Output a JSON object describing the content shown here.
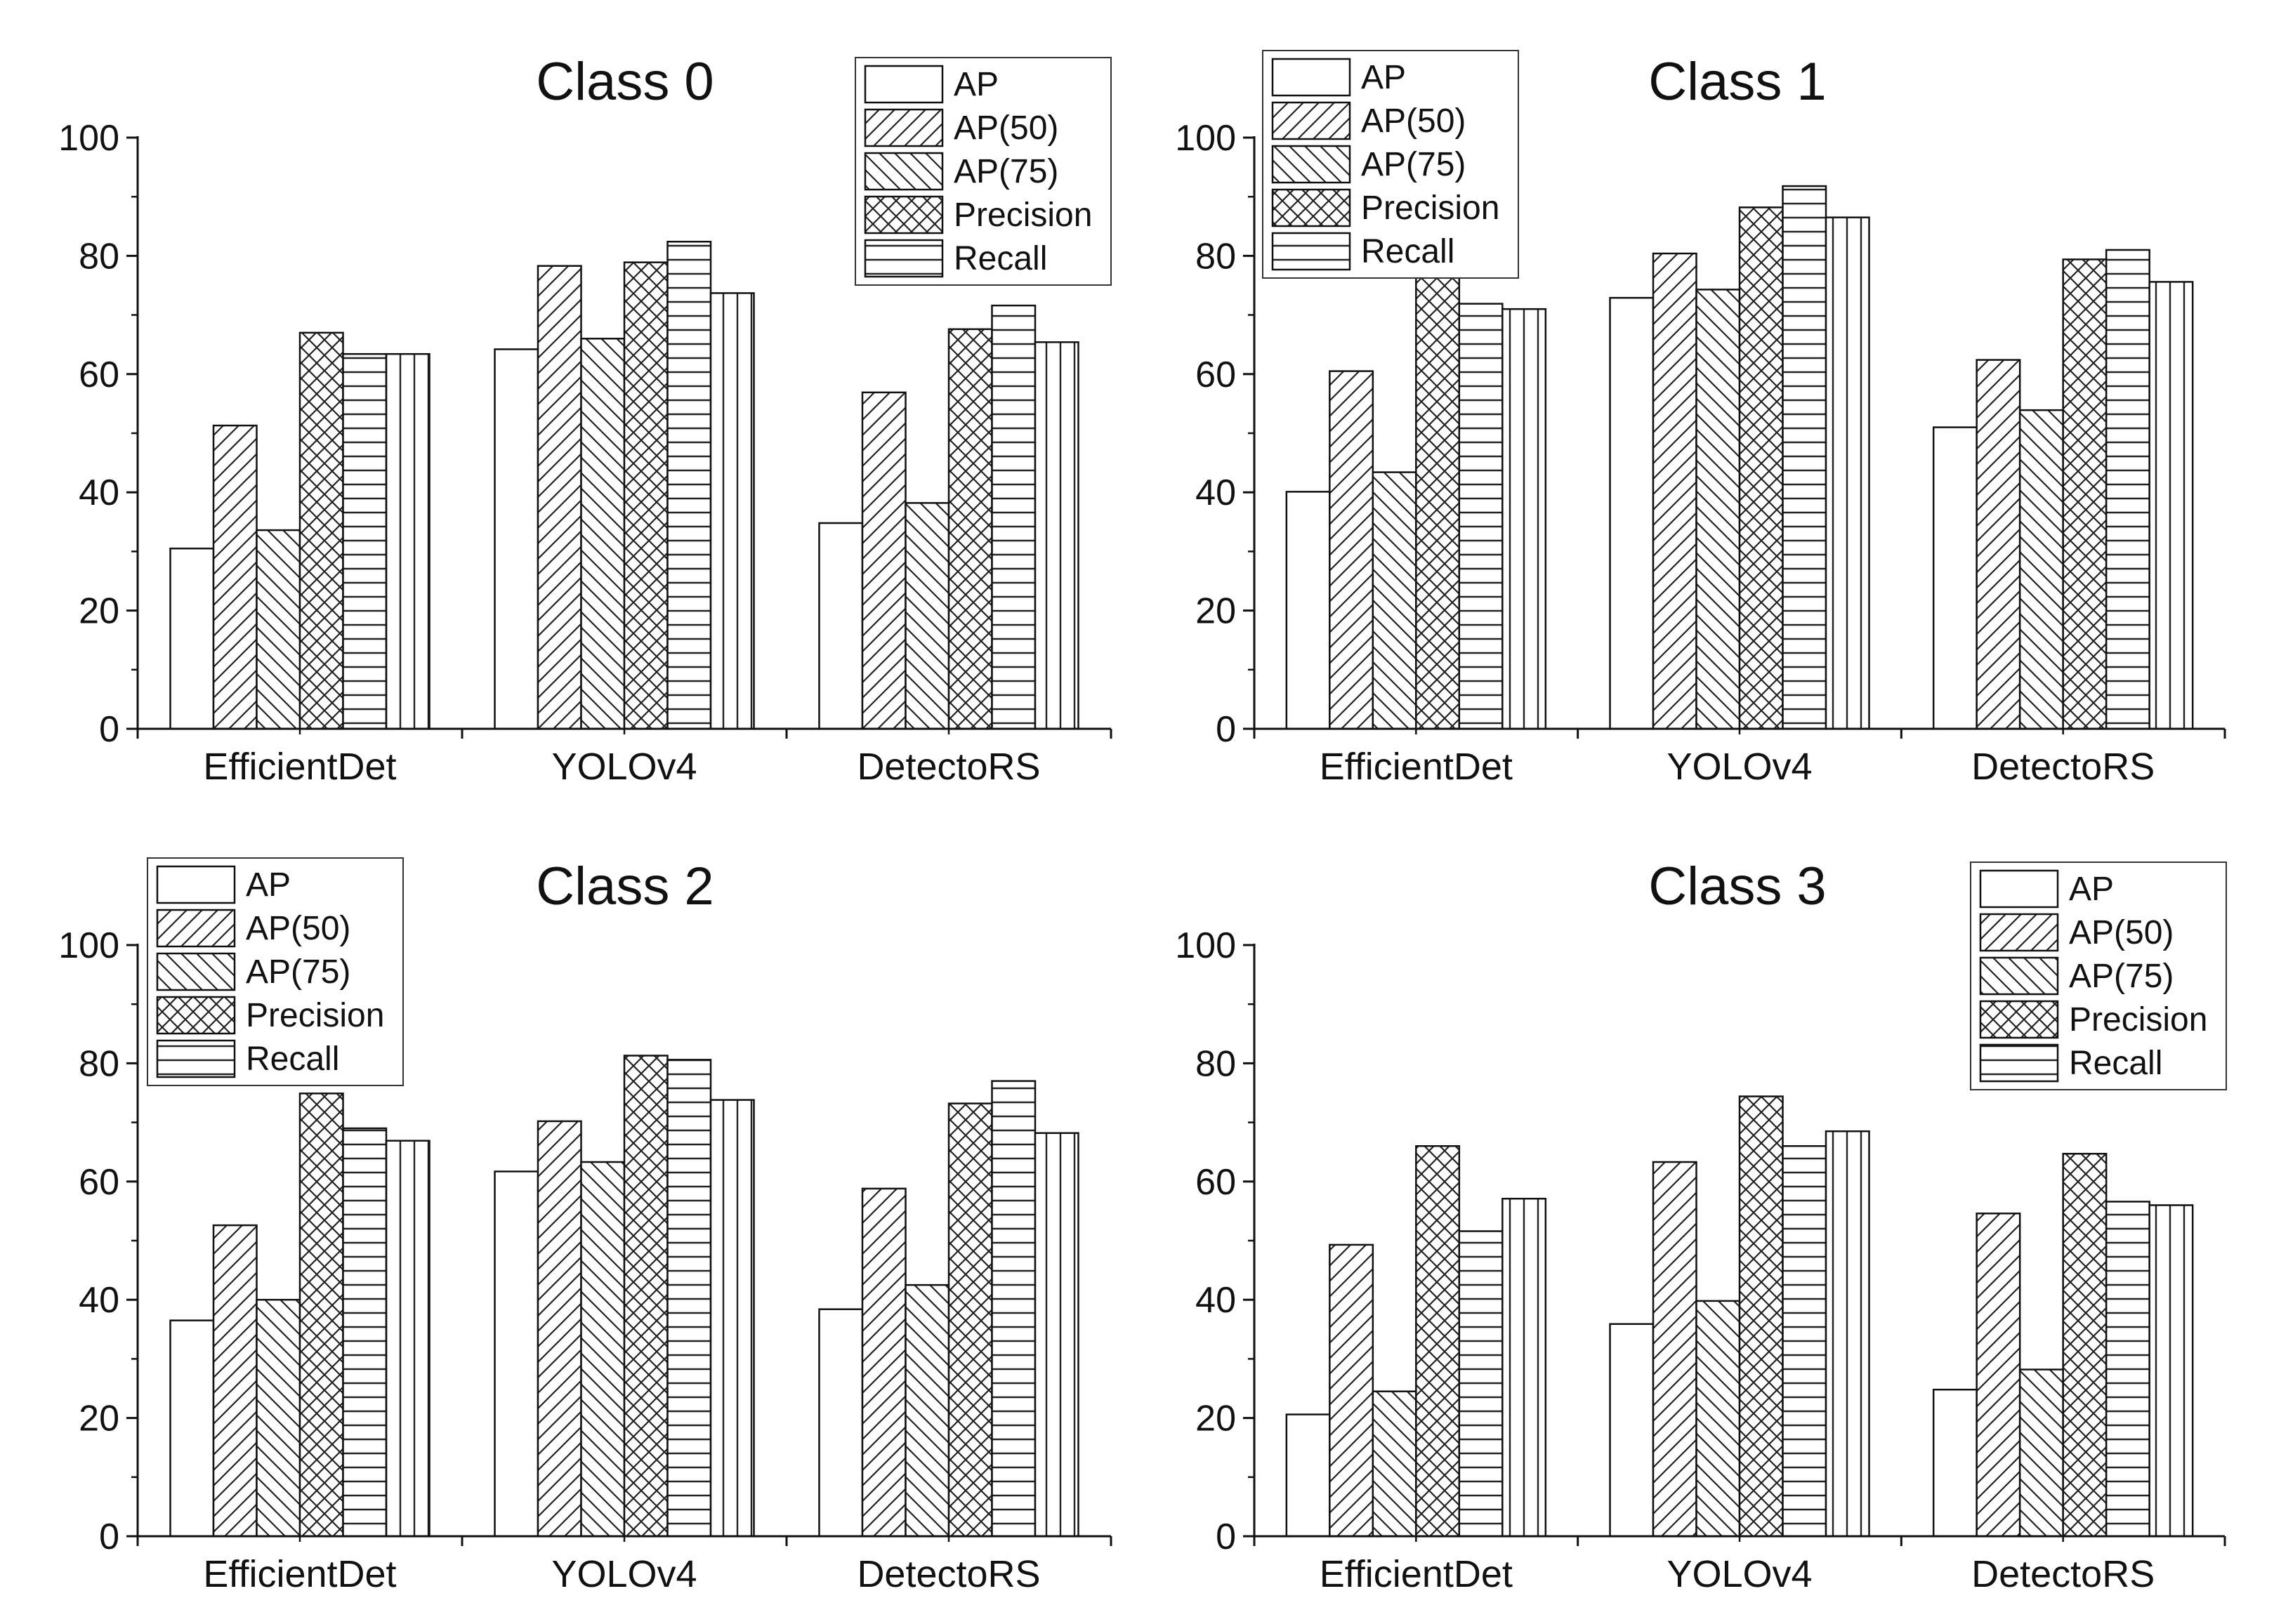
{
  "chart_data": [
    {
      "type": "bar",
      "title": "Class 0",
      "categories": [
        "EfficientDet",
        "YOLOv4",
        "DetectoRS"
      ],
      "ylim": [
        0,
        100
      ],
      "yticks": [
        "0",
        "20",
        "40",
        "60",
        "80",
        "100"
      ],
      "legend_position": "top-right",
      "series": [
        {
          "name": "AP",
          "pattern": "blank",
          "values": [
            30.5,
            64.2,
            34.8
          ]
        },
        {
          "name": "AP(50)",
          "pattern": "diag-right",
          "values": [
            51.3,
            78.3,
            56.9
          ]
        },
        {
          "name": "AP(75)",
          "pattern": "diag-left",
          "values": [
            33.6,
            66.0,
            38.2
          ]
        },
        {
          "name": "Precision",
          "pattern": "crosshatch",
          "values": [
            67.0,
            78.9,
            67.6
          ]
        },
        {
          "name": "Recall",
          "pattern": "horizontal",
          "values": [
            63.4,
            82.4,
            71.6
          ]
        },
        {
          "name": "",
          "pattern": "vertical",
          "values": [
            63.4,
            73.7,
            65.4
          ]
        }
      ]
    },
    {
      "type": "bar",
      "title": "Class 1",
      "categories": [
        "EfficientDet",
        "YOLOv4",
        "DetectoRS"
      ],
      "ylim": [
        0,
        100
      ],
      "yticks": [
        "0",
        "20",
        "40",
        "60",
        "80",
        "100"
      ],
      "legend_position": "top-left",
      "series": [
        {
          "name": "AP",
          "pattern": "blank",
          "values": [
            40.1,
            72.9,
            51.0
          ]
        },
        {
          "name": "AP(50)",
          "pattern": "diag-right",
          "values": [
            60.5,
            80.4,
            62.4
          ]
        },
        {
          "name": "AP(75)",
          "pattern": "diag-left",
          "values": [
            43.4,
            74.3,
            53.9
          ]
        },
        {
          "name": "Precision",
          "pattern": "crosshatch",
          "values": [
            76.8,
            88.2,
            79.4
          ]
        },
        {
          "name": "Recall",
          "pattern": "horizontal",
          "values": [
            71.9,
            91.8,
            81.0
          ]
        },
        {
          "name": "",
          "pattern": "vertical",
          "values": [
            71.0,
            86.5,
            75.6
          ]
        }
      ]
    },
    {
      "type": "bar",
      "title": "Class 2",
      "categories": [
        "EfficientDet",
        "YOLOv4",
        "DetectoRS"
      ],
      "ylim": [
        0,
        100
      ],
      "yticks": [
        "0",
        "20",
        "40",
        "60",
        "80",
        "100"
      ],
      "legend_position": "top-left",
      "series": [
        {
          "name": "AP",
          "pattern": "blank",
          "values": [
            36.5,
            61.7,
            38.4
          ]
        },
        {
          "name": "AP(50)",
          "pattern": "diag-right",
          "values": [
            52.6,
            70.2,
            58.8
          ]
        },
        {
          "name": "AP(75)",
          "pattern": "diag-left",
          "values": [
            40.0,
            63.3,
            42.5
          ]
        },
        {
          "name": "Precision",
          "pattern": "crosshatch",
          "values": [
            74.9,
            81.3,
            73.2
          ]
        },
        {
          "name": "Recall",
          "pattern": "horizontal",
          "values": [
            69.0,
            80.6,
            77.0
          ]
        },
        {
          "name": "",
          "pattern": "vertical",
          "values": [
            66.9,
            73.8,
            68.2
          ]
        }
      ]
    },
    {
      "type": "bar",
      "title": "Class 3",
      "categories": [
        "EfficientDet",
        "YOLOv4",
        "DetectoRS"
      ],
      "ylim": [
        0,
        100
      ],
      "yticks": [
        "0",
        "20",
        "40",
        "60",
        "80",
        "100"
      ],
      "legend_position": "top-right",
      "series": [
        {
          "name": "AP",
          "pattern": "blank",
          "values": [
            20.6,
            35.9,
            24.8
          ]
        },
        {
          "name": "AP(50)",
          "pattern": "diag-right",
          "values": [
            49.3,
            63.3,
            54.6
          ]
        },
        {
          "name": "AP(75)",
          "pattern": "diag-left",
          "values": [
            24.5,
            39.8,
            28.2
          ]
        },
        {
          "name": "Precision",
          "pattern": "crosshatch",
          "values": [
            66.0,
            74.4,
            64.7
          ]
        },
        {
          "name": "Recall",
          "pattern": "horizontal",
          "values": [
            51.6,
            66.0,
            56.6
          ]
        },
        {
          "name": "",
          "pattern": "vertical",
          "values": [
            57.1,
            68.5,
            56.0
          ]
        }
      ]
    }
  ]
}
